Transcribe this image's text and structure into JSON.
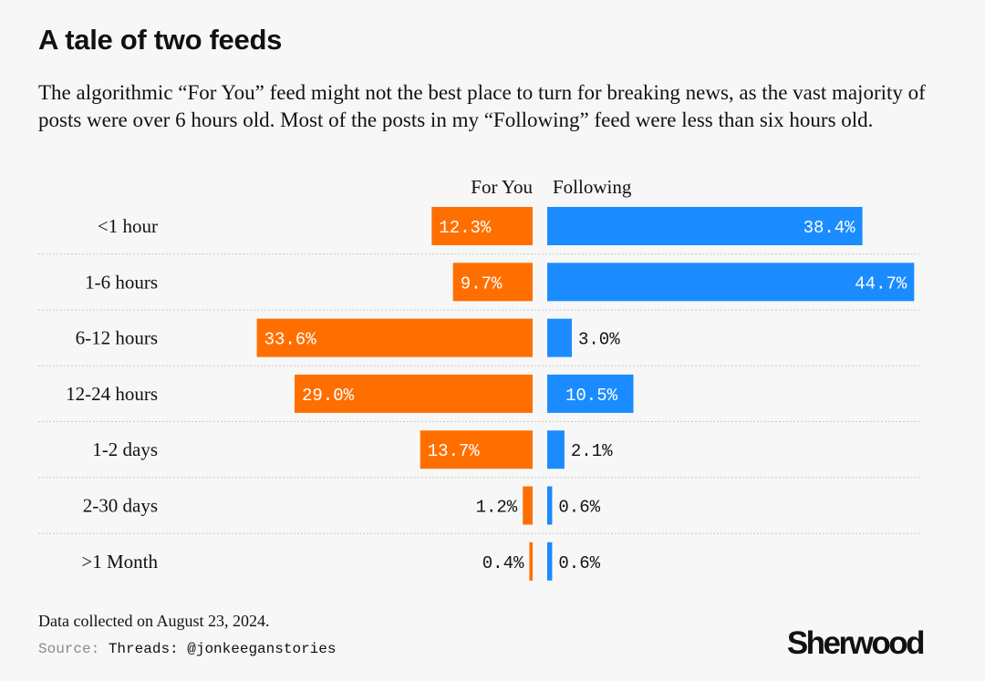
{
  "header": {
    "title": "A tale of two feeds",
    "subtitle": "The algorithmic “For You” feed might not the best place to turn for breaking news, as the vast majority of posts were over 6 hours old. Most of the posts in my “Following” feed were less than six hours old."
  },
  "footer": {
    "note": "Data collected on August 23, 2024.",
    "source_label": "Source:",
    "source_value": "Threads: @jonkeeganstories",
    "logo": "Sherwood"
  },
  "colors": {
    "for_you": "#ff6f00",
    "following": "#1a8cff"
  },
  "chart_data": {
    "type": "bar",
    "orientation": "horizontal-diverging",
    "categories": [
      "<1 hour",
      "1-6 hours",
      "6-12 hours",
      "12-24 hours",
      "1-2 days",
      "2-30 days",
      ">1 Month"
    ],
    "series": [
      {
        "name": "For You",
        "values": [
          12.3,
          9.7,
          33.6,
          29.0,
          13.7,
          1.2,
          0.4
        ],
        "labels": [
          "12.3%",
          "9.7%",
          "33.6%",
          "29.0%",
          "13.7%",
          "1.2%",
          "0.4%"
        ],
        "color": "#ff6f00",
        "direction": "left"
      },
      {
        "name": "Following",
        "values": [
          38.4,
          44.7,
          3.0,
          10.5,
          2.1,
          0.6,
          0.6
        ],
        "labels": [
          "38.4%",
          "44.7%",
          "3.0%",
          "10.5%",
          "2.1%",
          "0.6%",
          "0.6%"
        ],
        "color": "#1a8cff",
        "direction": "right"
      }
    ],
    "unit": "%",
    "xlim": [
      0,
      45
    ],
    "grid": "dotted row separators",
    "legend": "column headers above bars"
  }
}
